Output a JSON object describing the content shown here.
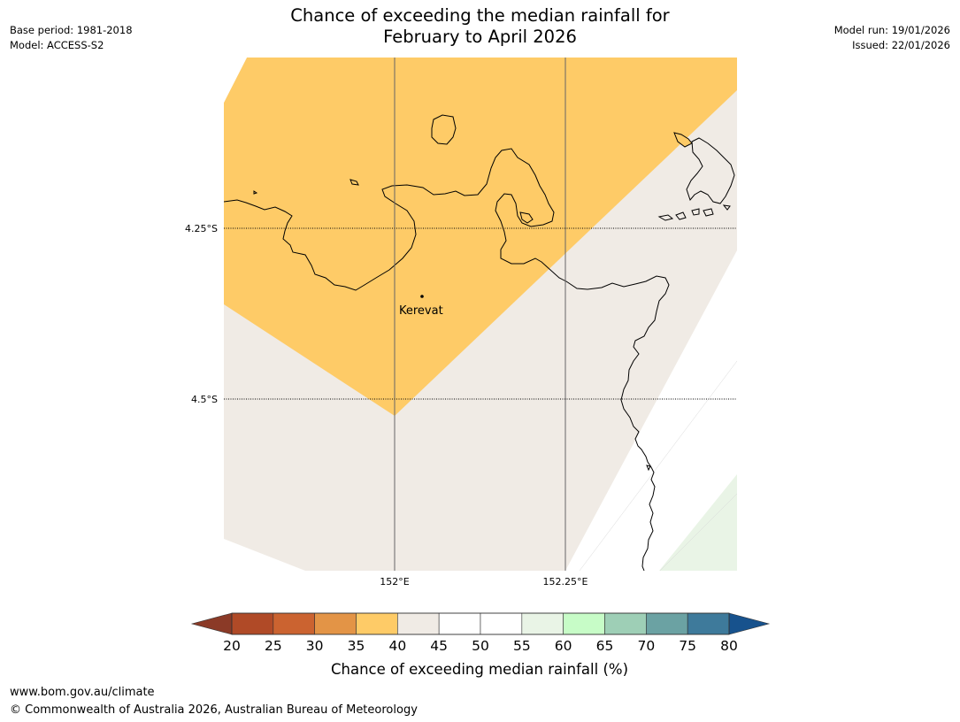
{
  "title": {
    "line1": "Chance of exceeding the median rainfall for",
    "line2": "February to April 2026"
  },
  "meta": {
    "base_period": "Base period: 1981-2018",
    "model": "Model: ACCESS-S2",
    "model_run": "Model run: 19/01/2026",
    "issued": "Issued: 22/01/2026"
  },
  "map": {
    "lat_labels": [
      "4.25°S",
      "4.5°S"
    ],
    "lon_labels": [
      "152°E",
      "152.25°E"
    ],
    "place": {
      "name": "Kerevat"
    },
    "colors": {
      "band_35_40": "#fecb67",
      "band_40_45": "#f0ebe5",
      "band_45_55": "#ffffff",
      "band_55_60": "#e9f4e6",
      "land_outline": "#000000",
      "grid": "#666666"
    }
  },
  "colorbar": {
    "title": "Chance of exceeding median rainfall (%)",
    "tick_labels": [
      "20",
      "25",
      "30",
      "35",
      "40",
      "45",
      "50",
      "55",
      "60",
      "65",
      "70",
      "75",
      "80"
    ],
    "colors": [
      "#b04a27",
      "#cb6330",
      "#e39446",
      "#fecb67",
      "#f0ebe5",
      "#ffffff",
      "#ffffff",
      "#e9f4e6",
      "#c7fcc7",
      "#9ecfb6",
      "#6ba2a3",
      "#3e7a9b"
    ],
    "under_color": "#8b3a27",
    "over_color": "#17528d"
  },
  "footer": {
    "url": "www.bom.gov.au/climate",
    "copyright": "© Commonwealth of Australia 2026, Australian Bureau of Meteorology"
  }
}
